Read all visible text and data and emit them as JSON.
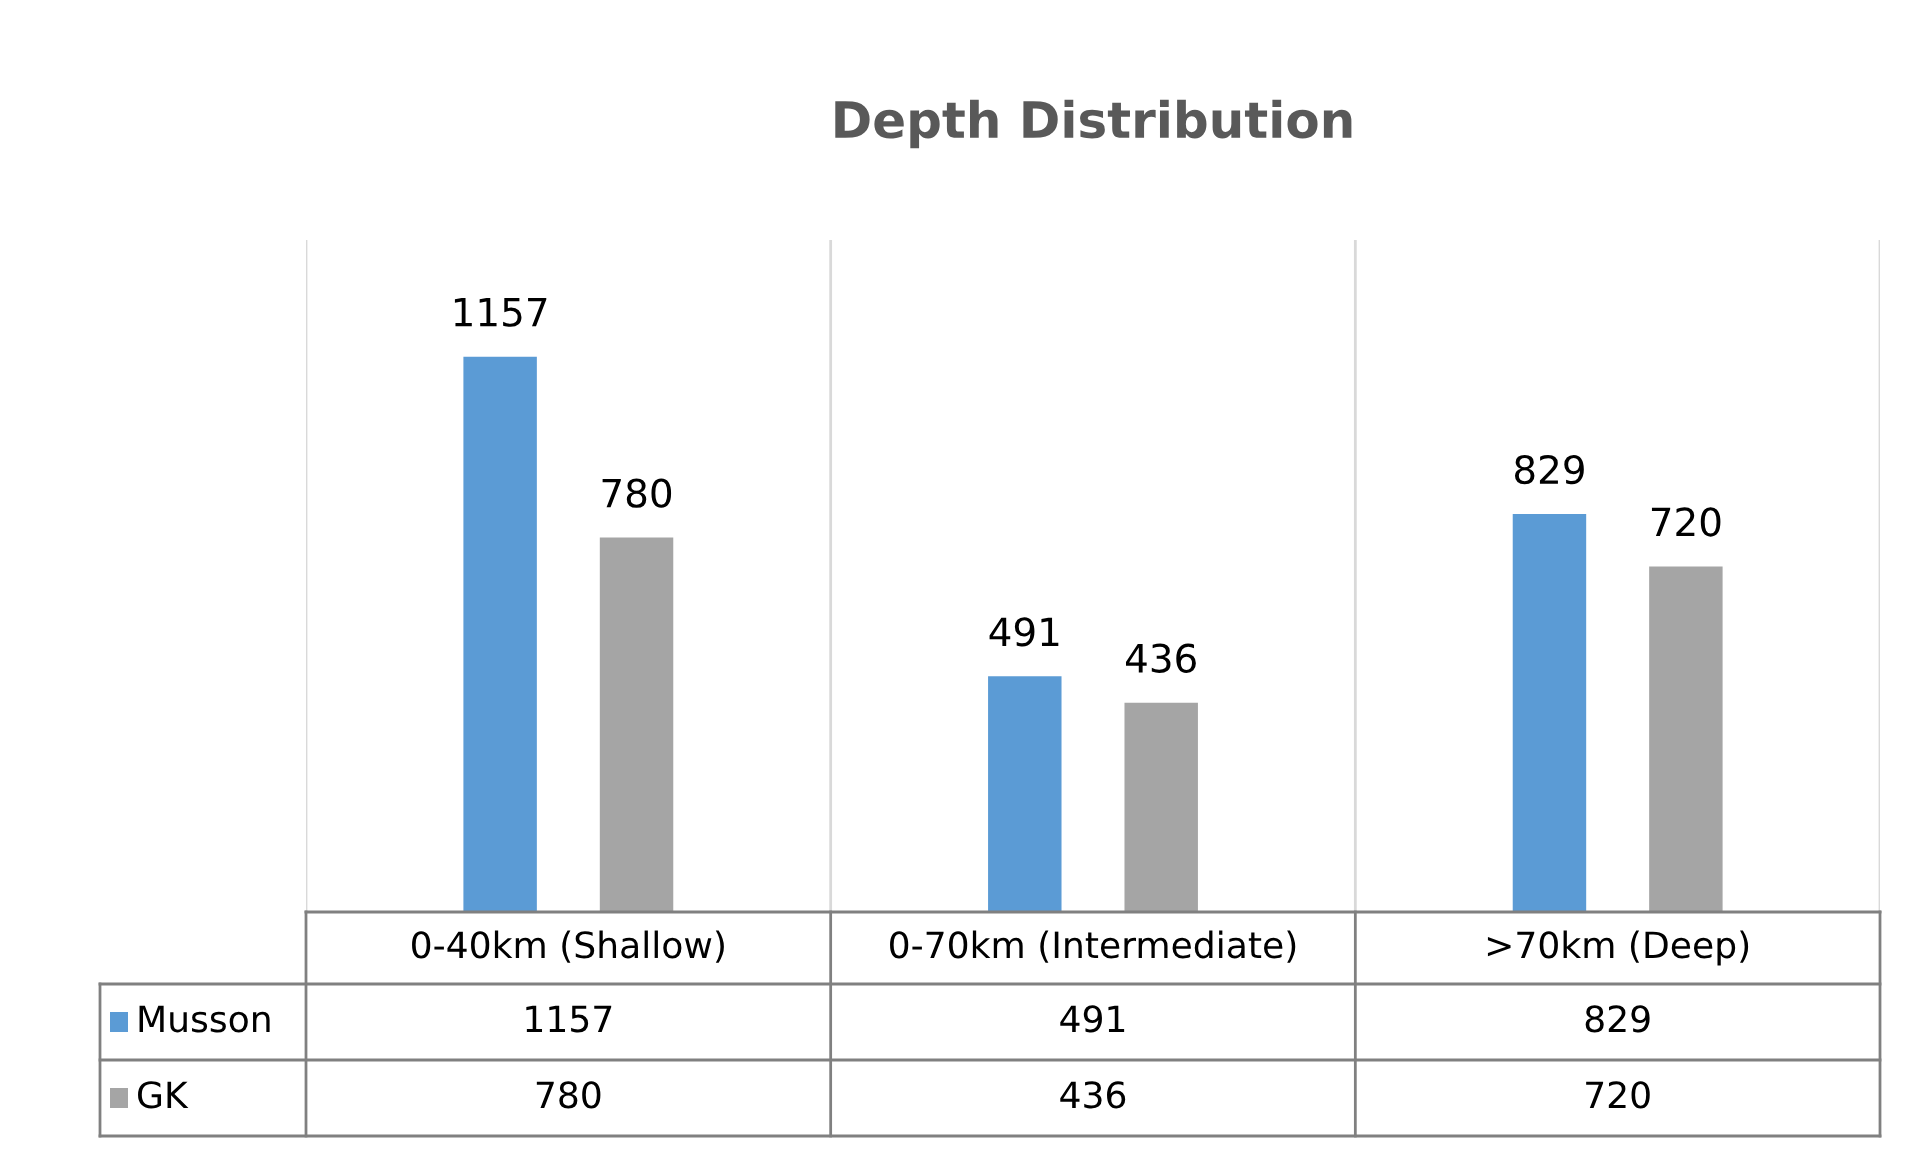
{
  "chart_data": {
    "type": "bar",
    "title": "Depth Distribution",
    "categories": [
      "0-40km (Shallow)",
      "0-70km (Intermediate)",
      ">70km (Deep)"
    ],
    "series": [
      {
        "name": "Musson",
        "color": "#5b9bd5",
        "values": [
          1157,
          491,
          829
        ],
        "value_labels": [
          "1157",
          "491",
          "829"
        ]
      },
      {
        "name": "GK",
        "color": "#a5a5a5",
        "values": [
          780,
          436,
          720
        ],
        "value_labels": [
          "780",
          "436",
          "720"
        ]
      }
    ],
    "annotations": [
      "1157",
      "491",
      "829",
      "780",
      "436",
      "720"
    ],
    "grid": "x",
    "legend": "bottom left"
  }
}
